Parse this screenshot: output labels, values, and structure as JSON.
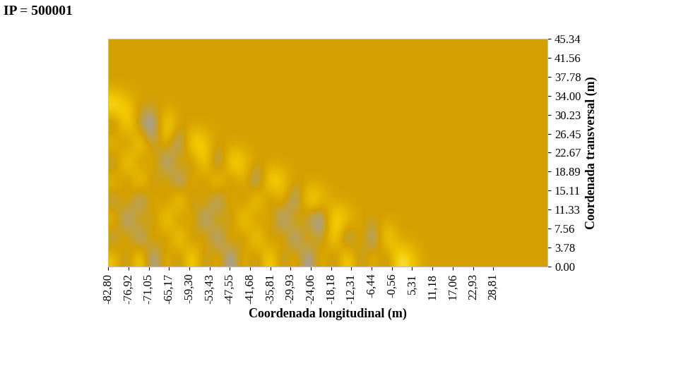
{
  "chart_data": {
    "type": "heatmap",
    "title": "IP = 500001",
    "x_label": "Coordenada longitudinal (m)",
    "y_label": "Coordenada transversal (m)",
    "xlim": [
      -82.8,
      44.56
    ],
    "ylim": [
      0,
      45.34
    ],
    "xticks": [
      {
        "value": -82.8,
        "label": "-82,80"
      },
      {
        "value": -76.92,
        "label": "-76,92"
      },
      {
        "value": -71.05,
        "label": "-71,05"
      },
      {
        "value": -65.17,
        "label": "-65,17"
      },
      {
        "value": -59.3,
        "label": "-59,30"
      },
      {
        "value": -53.43,
        "label": "-53,43"
      },
      {
        "value": -47.55,
        "label": "-47,55"
      },
      {
        "value": -41.68,
        "label": "-41,68"
      },
      {
        "value": -35.81,
        "label": "-35,81"
      },
      {
        "value": -29.93,
        "label": "-29,93"
      },
      {
        "value": -24.06,
        "label": "-24,06"
      },
      {
        "value": -18.18,
        "label": "-18,18"
      },
      {
        "value": -12.31,
        "label": "-12,31"
      },
      {
        "value": -6.44,
        "label": "-6,44"
      },
      {
        "value": -0.56,
        "label": "-0,56"
      },
      {
        "value": 5.31,
        "label": "5,31"
      },
      {
        "value": 11.18,
        "label": "11,18"
      },
      {
        "value": 17.06,
        "label": "17,06"
      },
      {
        "value": 22.93,
        "label": "22,93"
      },
      {
        "value": 28.81,
        "label": "28,81"
      }
    ],
    "yticks": [
      {
        "value": 0,
        "label": "0.00"
      },
      3.78,
      7.56,
      11.33,
      15.11,
      18.89,
      22.67,
      26.45,
      30.23,
      {
        "value": 34,
        "label": "34.00"
      },
      37.78,
      41.56,
      45.34
    ],
    "cells": [
      [
        1,
        -1,
        2,
        -2,
        1,
        -1,
        2,
        -1,
        1,
        -2,
        1,
        -1,
        2,
        -1,
        1,
        -2,
        1,
        -1,
        2,
        -1,
        1,
        -1,
        2,
        1,
        0,
        0,
        0,
        0,
        0,
        0,
        0,
        0,
        0,
        0
      ],
      [
        -1,
        1,
        -2,
        1,
        -1,
        2,
        -1,
        1,
        -2,
        1,
        -1,
        2,
        -1,
        1,
        -2,
        1,
        -1,
        2,
        -2,
        1,
        -2,
        2,
        0,
        0,
        0,
        0,
        0,
        0,
        0,
        0,
        0,
        0,
        0,
        0
      ],
      [
        1,
        -2,
        1,
        -1,
        2,
        -1,
        1,
        -2,
        1,
        -1,
        2,
        -1,
        1,
        -2,
        1,
        -1,
        -2,
        2,
        1,
        0,
        0,
        0,
        0,
        0,
        0,
        0,
        0,
        0,
        0,
        0,
        0,
        0,
        0,
        0
      ],
      [
        -1,
        1,
        -2,
        1,
        -1,
        2,
        -1,
        1,
        -2,
        1,
        -1,
        2,
        -1,
        1,
        -2,
        2,
        1,
        0,
        0,
        0,
        0,
        0,
        0,
        0,
        0,
        0,
        0,
        0,
        0,
        0,
        0,
        0,
        0,
        0
      ],
      [
        1,
        -1,
        2,
        -1,
        1,
        -2,
        1,
        -1,
        2,
        -1,
        1,
        -2,
        2,
        1,
        0,
        0,
        0,
        0,
        0,
        0,
        0,
        0,
        0,
        0,
        0,
        0,
        0,
        0,
        0,
        0,
        0,
        0,
        0,
        0
      ],
      [
        -1,
        2,
        -1,
        1,
        -2,
        1,
        -1,
        2,
        -2,
        2,
        1,
        0,
        0,
        0,
        0,
        0,
        0,
        0,
        0,
        0,
        0,
        0,
        0,
        0,
        0,
        0,
        0,
        0,
        0,
        0,
        0,
        0,
        0,
        0
      ],
      [
        1,
        -1,
        2,
        -1,
        1,
        -2,
        2,
        1,
        0,
        0,
        0,
        0,
        0,
        0,
        0,
        0,
        0,
        0,
        0,
        0,
        0,
        0,
        0,
        0,
        0,
        0,
        0,
        0,
        0,
        0,
        0,
        0,
        0,
        0
      ],
      [
        -1,
        2,
        -1,
        -2,
        2,
        0,
        0,
        0,
        0,
        0,
        0,
        0,
        0,
        0,
        0,
        0,
        0,
        0,
        0,
        0,
        0,
        0,
        0,
        0,
        0,
        0,
        0,
        0,
        0,
        0,
        0,
        0,
        0,
        0
      ],
      [
        2,
        1,
        0,
        0,
        0,
        0,
        0,
        0,
        0,
        0,
        0,
        0,
        0,
        0,
        0,
        0,
        0,
        0,
        0,
        0,
        0,
        0,
        0,
        0,
        0,
        0,
        0,
        0,
        0,
        0,
        0,
        0,
        0,
        0
      ],
      [
        0,
        0,
        0,
        0,
        0,
        0,
        0,
        0,
        0,
        0,
        0,
        0,
        0,
        0,
        0,
        0,
        0,
        0,
        0,
        0,
        0,
        0,
        0,
        0,
        0,
        0,
        0,
        0,
        0,
        0,
        0,
        0,
        0,
        0
      ],
      [
        0,
        0,
        0,
        0,
        0,
        0,
        0,
        0,
        0,
        0,
        0,
        0,
        0,
        0,
        0,
        0,
        0,
        0,
        0,
        0,
        0,
        0,
        0,
        0,
        0,
        0,
        0,
        0,
        0,
        0,
        0,
        0,
        0,
        0
      ],
      [
        0,
        0,
        0,
        0,
        0,
        0,
        0,
        0,
        0,
        0,
        0,
        0,
        0,
        0,
        0,
        0,
        0,
        0,
        0,
        0,
        0,
        0,
        0,
        0,
        0,
        0,
        0,
        0,
        0,
        0,
        0,
        0,
        0,
        0
      ]
    ]
  }
}
